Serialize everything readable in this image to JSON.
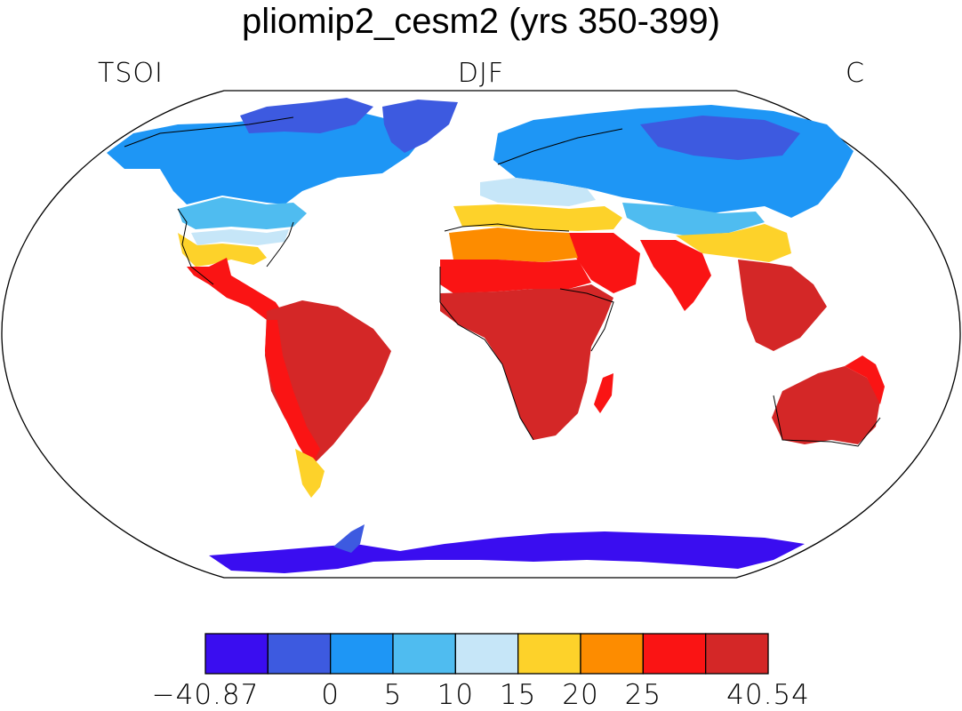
{
  "title": "pliomip2_cesm2 (yrs 350-399)",
  "left_label": "TSOI",
  "center_label": "DJF",
  "right_label": "C",
  "map": {
    "projection": "robinson",
    "fill_color": "#ffffff",
    "outline_color": "#000000"
  },
  "colorbar": {
    "colors": [
      "#3a0df0",
      "#3d5ae0",
      "#1e96f5",
      "#4fbcf0",
      "#c6e6f8",
      "#fdd22a",
      "#fd8c00",
      "#fa1414",
      "#d42727"
    ],
    "tick_labels": [
      "−40.87",
      "0",
      "5",
      "10",
      "15",
      "20",
      "25",
      "40.54"
    ]
  },
  "regions": [
    {
      "name": "north-america-north",
      "color": "#1e96f5"
    },
    {
      "name": "north-america-mid",
      "color": "#4fbcf0"
    },
    {
      "name": "north-america-south",
      "color": "#c6e6f8"
    },
    {
      "name": "gulf-coast",
      "color": "#fdd22a"
    },
    {
      "name": "mexico",
      "color": "#fa1414"
    },
    {
      "name": "canadian-arctic",
      "color": "#3d5ae0"
    },
    {
      "name": "greenland",
      "color": "#3d5ae0"
    },
    {
      "name": "south-america",
      "color": "#d42727"
    },
    {
      "name": "south-america-andes",
      "color": "#fa1414"
    },
    {
      "name": "patagonia",
      "color": "#fdd22a"
    },
    {
      "name": "eurasia-north",
      "color": "#1e96f5"
    },
    {
      "name": "siberia",
      "color": "#3d5ae0"
    },
    {
      "name": "europe-south",
      "color": "#c6e6f8"
    },
    {
      "name": "mediterranean",
      "color": "#fdd22a"
    },
    {
      "name": "sahara-north",
      "color": "#fd8c00"
    },
    {
      "name": "sahara",
      "color": "#fa1414"
    },
    {
      "name": "africa-tropics",
      "color": "#d42727"
    },
    {
      "name": "arabia",
      "color": "#fa1414"
    },
    {
      "name": "india",
      "color": "#fa1414"
    },
    {
      "name": "central-asia",
      "color": "#4fbcf0"
    },
    {
      "name": "china-south",
      "color": "#fdd22a"
    },
    {
      "name": "southeast-asia",
      "color": "#d42727"
    },
    {
      "name": "madagascar",
      "color": "#fa1414"
    },
    {
      "name": "australia",
      "color": "#d42727"
    },
    {
      "name": "australia-east",
      "color": "#fa1414"
    },
    {
      "name": "antarctica-peninsula",
      "color": "#3d5ae0"
    },
    {
      "name": "antarctica-coast",
      "color": "#3a0df0"
    }
  ]
}
